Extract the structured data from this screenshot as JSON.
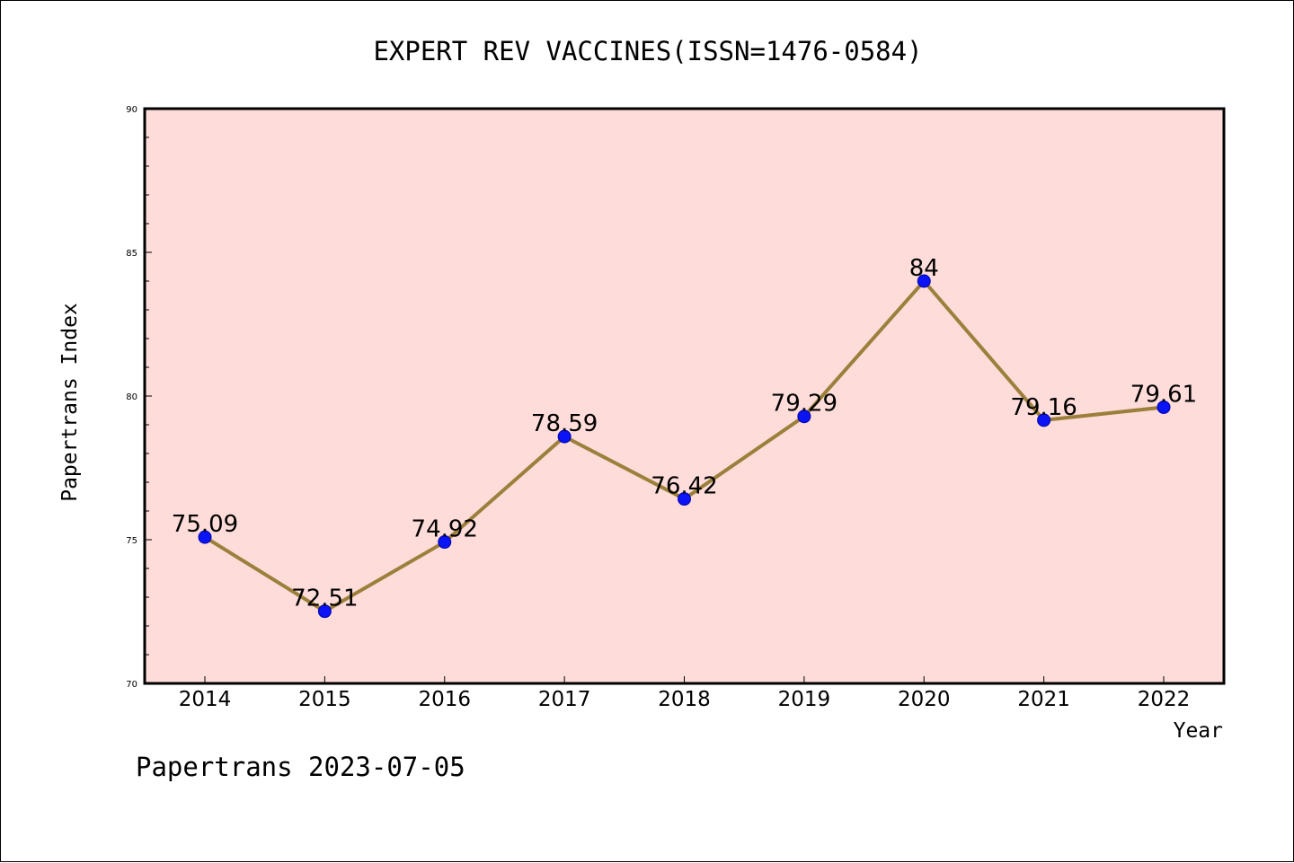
{
  "footer": "Papertrans 2023-07-05",
  "colors": {
    "plot_background": "#fddcd9",
    "line": "#9b7f3a",
    "marker": "#0a14f5",
    "marker_edge": "#0000aa"
  },
  "chart_data": {
    "type": "line",
    "title": "EXPERT REV VACCINES(ISSN=1476-0584)",
    "xlabel": "Year",
    "ylabel": "Papertrans Index",
    "categories": [
      "2014",
      "2015",
      "2016",
      "2017",
      "2018",
      "2019",
      "2020",
      "2021",
      "2022"
    ],
    "series": [
      {
        "values": [
          75.09,
          72.51,
          74.92,
          78.59,
          76.42,
          79.29,
          84,
          79.16,
          79.61
        ],
        "labels": [
          "75.09",
          "72.51",
          "74.92",
          "78.59",
          "76.42",
          "79.29",
          "84",
          "79.16",
          "79.61"
        ]
      }
    ],
    "ylim": [
      70,
      90
    ],
    "yticks": [
      70,
      75,
      80,
      85,
      90
    ],
    "y_minor_step": 1,
    "grid": false,
    "legend": "none"
  }
}
